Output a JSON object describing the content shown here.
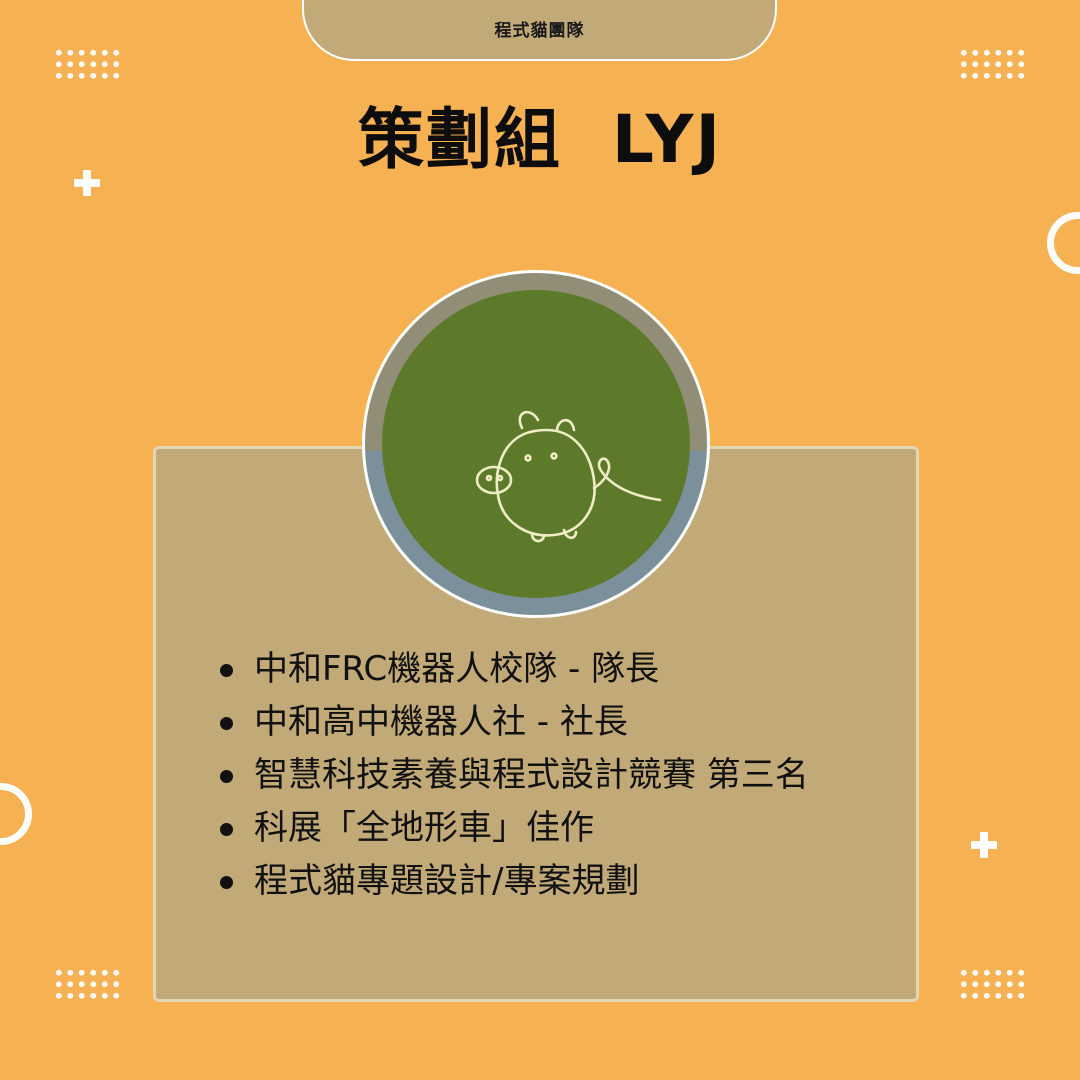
{
  "header": {
    "team_name": "程式貓團隊",
    "title": "策劃組  LYJ"
  },
  "profile": {
    "avatar_icon": "pig-doodle-icon"
  },
  "achievements": [
    "中和FRC機器人校隊 - 隊長",
    "中和高中機器人社 - 社長",
    "智慧科技素養與程式設計競賽 第三名",
    "科展「全地形車」佳作",
    "程式貓專題設計/專案規劃"
  ],
  "colors": {
    "background": "#f6b153",
    "card": "#c2aa78",
    "avatar_green": "#5d7a2a",
    "decor": "#ffffff"
  }
}
